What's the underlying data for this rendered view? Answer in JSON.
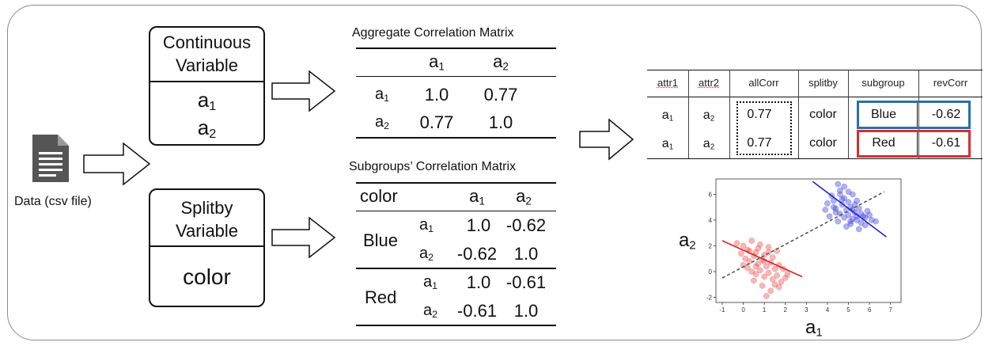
{
  "data_source": {
    "label": "Data (csv file)"
  },
  "continuous_box": {
    "title_line1": "Continuous",
    "title_line2": "Variable",
    "vars": [
      "a",
      "a"
    ],
    "subs": [
      "1",
      "2"
    ]
  },
  "splitby_box": {
    "title_line1": "Splitby",
    "title_line2": "Variable",
    "value": "color"
  },
  "aggregate_table": {
    "title": "Aggregate Correlation Matrix",
    "col_base": "a",
    "col_subs": [
      "1",
      "2"
    ],
    "rows": [
      {
        "base": "a",
        "sub": "1",
        "values": [
          "1.0",
          "0.77"
        ]
      },
      {
        "base": "a",
        "sub": "2",
        "values": [
          "0.77",
          "1.0"
        ]
      }
    ]
  },
  "subgroups_table": {
    "title": "Subgroups’ Correlation Matrix",
    "header_label": "color",
    "col_base": "a",
    "col_subs": [
      "1",
      "2"
    ],
    "groups": [
      {
        "name": "Blue",
        "rows": [
          {
            "base": "a",
            "sub": "1",
            "values": [
              "1.0",
              "-0.62"
            ]
          },
          {
            "base": "a",
            "sub": "2",
            "values": [
              "-0.62",
              "1.0"
            ]
          }
        ]
      },
      {
        "name": "Red",
        "rows": [
          {
            "base": "a",
            "sub": "1",
            "values": [
              "1.0",
              "-0.61"
            ]
          },
          {
            "base": "a",
            "sub": "2",
            "values": [
              "-0.61",
              "1.0"
            ]
          }
        ]
      }
    ]
  },
  "result_table": {
    "headers": [
      "attr1",
      "attr2",
      "allCorr",
      "splitby",
      "subgroup",
      "revCorr"
    ],
    "rows": [
      {
        "attr1_base": "a",
        "attr1_sub": "1",
        "attr2_base": "a",
        "attr2_sub": "2",
        "allCorr": "0.77",
        "splitby": "color",
        "subgroup": "Blue",
        "revCorr": "-0.62"
      },
      {
        "attr1_base": "a",
        "attr1_sub": "1",
        "attr2_base": "a",
        "attr2_sub": "2",
        "allCorr": "0.77",
        "splitby": "color",
        "subgroup": "Red",
        "revCorr": "-0.61"
      }
    ]
  },
  "colors": {
    "blue": "#2c6faa",
    "red": "#d32f2f",
    "blue_points": "#3b3bdb",
    "red_points": "#e84a4a"
  },
  "chart_data": {
    "type": "scatter",
    "xlabel_base": "a",
    "xlabel_sub": "1",
    "ylabel_base": "a",
    "ylabel_sub": "2",
    "xlim": [
      -1.3,
      7.5
    ],
    "ylim": [
      -2.4,
      7.2
    ],
    "xticks": [
      -1,
      0,
      1,
      2,
      3,
      4,
      5,
      6,
      7
    ],
    "yticks": [
      -2,
      0,
      2,
      4,
      6
    ],
    "series": [
      {
        "color_key": "blue_points",
        "points": [
          [
            4.2,
            5.9
          ],
          [
            4.5,
            6.8
          ],
          [
            4.6,
            6.3
          ],
          [
            4.8,
            5.7
          ],
          [
            5.0,
            6.2
          ],
          [
            5.2,
            6.0
          ],
          [
            5.4,
            5.5
          ],
          [
            4.4,
            4.9
          ],
          [
            4.7,
            5.2
          ],
          [
            4.9,
            4.8
          ],
          [
            5.1,
            5.0
          ],
          [
            5.3,
            4.6
          ],
          [
            5.5,
            4.9
          ],
          [
            5.7,
            4.3
          ],
          [
            5.9,
            4.7
          ],
          [
            6.1,
            4.0
          ],
          [
            4.0,
            5.3
          ],
          [
            4.3,
            5.0
          ],
          [
            4.6,
            4.5
          ],
          [
            4.8,
            4.2
          ],
          [
            5.0,
            4.4
          ],
          [
            5.2,
            4.1
          ],
          [
            5.4,
            4.0
          ],
          [
            5.6,
            3.8
          ],
          [
            5.8,
            3.6
          ],
          [
            6.3,
            3.9
          ],
          [
            4.1,
            4.3
          ],
          [
            4.5,
            3.9
          ],
          [
            4.9,
            3.5
          ],
          [
            5.1,
            3.7
          ],
          [
            5.5,
            3.3
          ],
          [
            4.7,
            5.6
          ],
          [
            5.3,
            5.2
          ],
          [
            4.6,
            6.0
          ],
          [
            5.0,
            5.4
          ],
          [
            5.6,
            4.5
          ],
          [
            4.4,
            4.6
          ],
          [
            3.9,
            4.8
          ],
          [
            5.2,
            4.8
          ],
          [
            5.8,
            4.2
          ],
          [
            6.0,
            4.4
          ],
          [
            4.8,
            6.6
          ],
          [
            5.1,
            3.9
          ],
          [
            4.3,
            5.5
          ],
          [
            5.4,
            4.3
          ]
        ],
        "fit": [
          [
            3.3,
            7.0
          ],
          [
            6.8,
            2.7
          ]
        ]
      },
      {
        "color_key": "red_points",
        "points": [
          [
            -0.3,
            2.2
          ],
          [
            0,
            2.0
          ],
          [
            0.2,
            1.7
          ],
          [
            0.4,
            2.4
          ],
          [
            0.6,
            1.5
          ],
          [
            0.8,
            2.1
          ],
          [
            1.0,
            1.3
          ],
          [
            1.2,
            1.9
          ],
          [
            1.4,
            1.1
          ],
          [
            1.6,
            1.6
          ],
          [
            -0.1,
            1.4
          ],
          [
            0.1,
            1.0
          ],
          [
            0.3,
            0.8
          ],
          [
            0.5,
            1.2
          ],
          [
            0.7,
            0.6
          ],
          [
            0.9,
            0.9
          ],
          [
            1.1,
            0.4
          ],
          [
            1.3,
            0.7
          ],
          [
            1.5,
            0.2
          ],
          [
            1.7,
            0.5
          ],
          [
            0.2,
            0.3
          ],
          [
            0.4,
            0.0
          ],
          [
            0.6,
            -0.2
          ],
          [
            0.8,
            0.1
          ],
          [
            1.0,
            -0.4
          ],
          [
            1.2,
            -0.1
          ],
          [
            1.4,
            -0.6
          ],
          [
            1.6,
            -0.3
          ],
          [
            1.8,
            -0.8
          ],
          [
            2.0,
            -0.5
          ],
          [
            0.5,
            -0.7
          ],
          [
            0.9,
            -1.1
          ],
          [
            1.3,
            -1.5
          ],
          [
            1.1,
            -1.9
          ],
          [
            1.7,
            -1.2
          ],
          [
            0.0,
            0.5
          ],
          [
            0.7,
            1.8
          ],
          [
            1.9,
            0.2
          ],
          [
            0.3,
            1.6
          ],
          [
            1.5,
            -1.0
          ],
          [
            2.1,
            -0.2
          ],
          [
            0.6,
            0.4
          ],
          [
            1.0,
            0.8
          ],
          [
            1.2,
            1.5
          ]
        ],
        "fit": [
          [
            -1.0,
            2.4
          ],
          [
            2.8,
            -0.4
          ]
        ]
      }
    ],
    "overall_fit": [
      [
        -1.0,
        -0.5
      ],
      [
        6.7,
        6.2
      ]
    ]
  }
}
